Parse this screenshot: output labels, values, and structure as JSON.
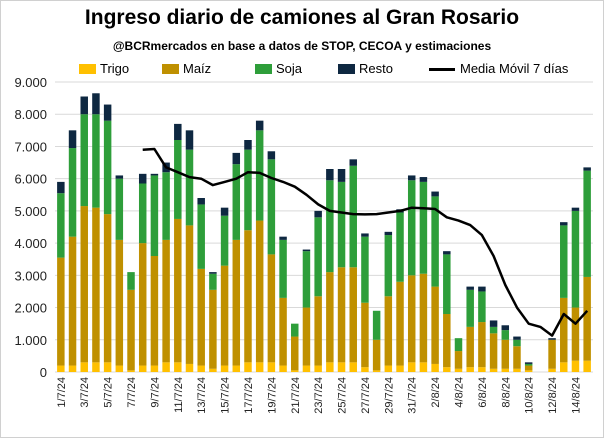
{
  "chart_data": {
    "type": "bar",
    "stacked": true,
    "title": "Ingreso diario de camiones al Gran Rosario",
    "subtitle": "@BCRmercados  en base a datos de STOP, CECOA y estimaciones",
    "ylim": [
      0,
      9000
    ],
    "yticks": [
      "0",
      "1.000",
      "2.000",
      "3.000",
      "4.000",
      "5.000",
      "6.000",
      "7.000",
      "8.000",
      "9.000"
    ],
    "grid": true,
    "legend_position": "top",
    "categories": [
      "1/7/24",
      "2/7/24",
      "3/7/24",
      "4/7/24",
      "5/7/24",
      "6/7/24",
      "7/7/24",
      "8/7/24",
      "9/7/24",
      "10/7/24",
      "11/7/24",
      "12/7/24",
      "13/7/24",
      "14/7/24",
      "15/7/24",
      "16/7/24",
      "17/7/24",
      "18/7/24",
      "19/7/24",
      "20/7/24",
      "21/7/24",
      "22/7/24",
      "23/7/24",
      "24/7/24",
      "25/7/24",
      "26/7/24",
      "27/7/24",
      "28/7/24",
      "29/7/24",
      "30/7/24",
      "31/7/24",
      "1/8/24",
      "2/8/24",
      "3/8/24",
      "4/8/24",
      "5/8/24",
      "6/8/24",
      "7/8/24",
      "8/8/24",
      "9/8/24",
      "10/8/24",
      "11/8/24",
      "12/8/24",
      "13/8/24",
      "14/8/24",
      "15/8/24"
    ],
    "x_tick_labels": [
      "1/7/24",
      "",
      "3/7/24",
      "",
      "5/7/24",
      "",
      "7/7/24",
      "",
      "9/7/24",
      "",
      "11/7/24",
      "",
      "13/7/24",
      "",
      "15/7/24",
      "",
      "17/7/24",
      "",
      "19/7/24",
      "",
      "21/7/24",
      "",
      "23/7/24",
      "",
      "25/7/24",
      "",
      "27/7/24",
      "",
      "29/7/24",
      "",
      "31/7/24",
      "",
      "2/8/24",
      "",
      "4/8/24",
      "",
      "6/8/24",
      "",
      "8/8/24",
      "",
      "10/8/24",
      "",
      "12/8/24",
      "",
      "14/8/24",
      ""
    ],
    "series": [
      {
        "name": "Trigo",
        "color": "#FFC000",
        "values": [
          200,
          200,
          300,
          300,
          300,
          200,
          50,
          200,
          200,
          300,
          300,
          250,
          200,
          100,
          200,
          200,
          300,
          300,
          300,
          200,
          50,
          200,
          200,
          300,
          300,
          300,
          150,
          50,
          200,
          200,
          300,
          300,
          250,
          150,
          100,
          150,
          150,
          100,
          100,
          100,
          50,
          0,
          100,
          300,
          350,
          350
        ]
      },
      {
        "name": "Maíz",
        "color": "#BF9000",
        "values": [
          3350,
          4000,
          4850,
          4800,
          4600,
          3900,
          2500,
          3800,
          3400,
          3800,
          4450,
          4300,
          3000,
          2450,
          3100,
          3900,
          4100,
          4400,
          3350,
          2100,
          1050,
          1800,
          2150,
          2800,
          2950,
          2950,
          2000,
          950,
          2150,
          2600,
          2700,
          2750,
          2400,
          1650,
          550,
          1250,
          1400,
          1100,
          900,
          700,
          150,
          0,
          900,
          2000,
          1650,
          2600
        ]
      },
      {
        "name": "Soja",
        "color": "#2E9E3A",
        "values": [
          2000,
          2750,
          2850,
          2900,
          2900,
          1900,
          550,
          1850,
          2500,
          2100,
          2450,
          2350,
          2000,
          500,
          1550,
          2350,
          2500,
          2800,
          2950,
          1800,
          400,
          1750,
          2450,
          2850,
          2650,
          3150,
          2050,
          900,
          1900,
          2150,
          2950,
          2850,
          2800,
          1850,
          400,
          1150,
          950,
          200,
          300,
          200,
          50,
          0,
          0,
          2250,
          3000,
          3300
        ]
      },
      {
        "name": "Resto",
        "color": "#0E2841",
        "values": [
          350,
          550,
          550,
          650,
          500,
          100,
          0,
          300,
          50,
          300,
          500,
          600,
          200,
          50,
          250,
          350,
          300,
          300,
          250,
          100,
          0,
          50,
          200,
          350,
          400,
          200,
          100,
          0,
          100,
          100,
          150,
          150,
          150,
          100,
          0,
          100,
          150,
          200,
          150,
          100,
          50,
          0,
          50,
          100,
          100,
          100
        ]
      }
    ],
    "line": {
      "name": "Media Móvil 7 días",
      "color": "#000000",
      "values": [
        null,
        null,
        null,
        null,
        null,
        null,
        null,
        6900,
        6920,
        6350,
        6200,
        6050,
        6000,
        5800,
        5900,
        6000,
        6200,
        6180,
        6020,
        5900,
        5750,
        5500,
        5200,
        5000,
        4950,
        4900,
        4890,
        4900,
        4950,
        5000,
        5100,
        5080,
        5060,
        4800,
        4700,
        4560,
        4250,
        3600,
        2700,
        2000,
        1500,
        1400,
        1130,
        1800,
        1500,
        1900
      ]
    }
  }
}
